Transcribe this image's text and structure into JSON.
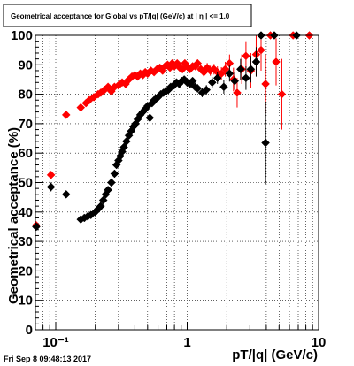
{
  "chart_data": {
    "type": "scatter",
    "title": "Geometrical acceptance for Global vs pT/|q| (GeV/c) at | η | <= 1.0",
    "xlabel": "pT/|q| (GeV/c)",
    "ylabel": "Geometrical acceptance (%)",
    "x_scale": "log",
    "xlim": [
      0.07,
      10
    ],
    "ylim": [
      0,
      100
    ],
    "x_ticks": [
      {
        "value": 0.1,
        "label": "10⁻¹"
      },
      {
        "value": 1,
        "label": "1"
      },
      {
        "value": 10,
        "label": "10"
      }
    ],
    "y_ticks": [
      {
        "value": 0,
        "label": "0"
      },
      {
        "value": 10,
        "label": "10"
      },
      {
        "value": 20,
        "label": "20"
      },
      {
        "value": 30,
        "label": "30"
      },
      {
        "value": 40,
        "label": "40"
      },
      {
        "value": 50,
        "label": "50"
      },
      {
        "value": 60,
        "label": "60"
      },
      {
        "value": 70,
        "label": "70"
      },
      {
        "value": 80,
        "label": "80"
      },
      {
        "value": 90,
        "label": "90"
      },
      {
        "value": 100,
        "label": "100"
      }
    ],
    "grid": true,
    "series": [
      {
        "color": "#ff0000",
        "marker": "diamond",
        "points": [
          [
            0.071,
            35.5
          ],
          [
            0.092,
            52.6
          ],
          [
            0.12,
            73.0
          ],
          [
            0.155,
            75.5
          ],
          [
            0.17,
            77.0
          ],
          [
            0.18,
            78.0
          ],
          [
            0.195,
            79.0
          ],
          [
            0.21,
            80.0
          ],
          [
            0.22,
            80.5
          ],
          [
            0.235,
            81.5
          ],
          [
            0.25,
            82.5
          ],
          [
            0.265,
            81.0
          ],
          [
            0.28,
            82.5
          ],
          [
            0.3,
            83.0
          ],
          [
            0.32,
            84.0
          ],
          [
            0.34,
            83.5
          ],
          [
            0.36,
            85.0
          ],
          [
            0.38,
            86.0
          ],
          [
            0.4,
            86.5
          ],
          [
            0.42,
            86.0
          ],
          [
            0.44,
            87.0
          ],
          [
            0.46,
            86.5
          ],
          [
            0.48,
            87.5
          ],
          [
            0.5,
            87.0
          ],
          [
            0.53,
            88.0
          ],
          [
            0.56,
            87.5
          ],
          [
            0.59,
            88.5
          ],
          [
            0.62,
            89.0
          ],
          [
            0.65,
            88.0
          ],
          [
            0.68,
            89.5
          ],
          [
            0.71,
            90.0
          ],
          [
            0.74,
            89.0
          ],
          [
            0.77,
            90.5
          ],
          [
            0.8,
            89.5
          ],
          [
            0.84,
            90.5
          ],
          [
            0.88,
            89.0
          ],
          [
            0.92,
            88.5
          ],
          [
            0.96,
            90.5
          ],
          [
            1.0,
            89.5
          ],
          [
            1.05,
            88.5
          ],
          [
            1.1,
            89.5
          ],
          [
            1.15,
            89.5
          ],
          [
            1.2,
            90.5
          ],
          [
            1.27,
            88.5
          ],
          [
            1.34,
            87.5
          ],
          [
            1.42,
            89.0
          ],
          [
            1.5,
            88.0
          ],
          [
            1.6,
            88.5
          ],
          [
            1.7,
            87.5
          ],
          [
            1.82,
            87.0
          ],
          [
            1.95,
            88.5
          ],
          [
            2.1,
            90.5
          ],
          [
            2.25,
            85.0
          ],
          [
            2.4,
            80.5
          ],
          [
            2.6,
            88.5
          ],
          [
            2.8,
            93.0
          ],
          [
            3.05,
            88.0
          ],
          [
            3.35,
            93.5
          ],
          [
            3.65,
            95.0
          ],
          [
            3.95,
            83.5
          ],
          [
            4.3,
            100.0
          ],
          [
            4.75,
            91.0
          ],
          [
            5.25,
            80.0
          ],
          [
            6.4,
            100.0
          ],
          [
            8.5,
            100.0
          ]
        ],
        "errors": [
          0.8,
          1.2,
          1.0,
          1.0,
          1.0,
          0.9,
          0.9,
          0.9,
          0.9,
          0.9,
          0.8,
          0.8,
          0.8,
          0.8,
          0.8,
          0.8,
          0.8,
          0.8,
          0.8,
          0.8,
          0.8,
          0.8,
          0.8,
          0.8,
          0.8,
          0.8,
          0.8,
          0.8,
          0.9,
          0.9,
          0.9,
          0.9,
          0.9,
          0.9,
          1.0,
          1.0,
          1.0,
          1.0,
          1.1,
          1.1,
          1.2,
          1.2,
          1.3,
          1.4,
          1.5,
          1.6,
          1.7,
          1.8,
          2.0,
          2.2,
          2.5,
          3.0,
          4.0,
          5.0,
          5.0,
          5.0,
          6.0,
          7.0,
          7.0,
          10.0,
          0.0,
          8.0,
          12.0,
          0.0,
          0.0
        ]
      },
      {
        "color": "#000000",
        "marker": "diamond",
        "points": [
          [
            0.071,
            35.0
          ],
          [
            0.092,
            48.5
          ],
          [
            0.12,
            46.0
          ],
          [
            0.155,
            37.5
          ],
          [
            0.165,
            38.0
          ],
          [
            0.175,
            38.5
          ],
          [
            0.185,
            39.0
          ],
          [
            0.2,
            40.0
          ],
          [
            0.21,
            41.0
          ],
          [
            0.22,
            42.0
          ],
          [
            0.23,
            44.0
          ],
          [
            0.24,
            46.0
          ],
          [
            0.25,
            47.5
          ],
          [
            0.265,
            50.0
          ],
          [
            0.28,
            53.0
          ],
          [
            0.29,
            56.0
          ],
          [
            0.3,
            57.5
          ],
          [
            0.31,
            59.0
          ],
          [
            0.32,
            60.5
          ],
          [
            0.33,
            62.0
          ],
          [
            0.345,
            64.0
          ],
          [
            0.36,
            66.0
          ],
          [
            0.375,
            67.5
          ],
          [
            0.39,
            69.0
          ],
          [
            0.405,
            70.0
          ],
          [
            0.42,
            71.5
          ],
          [
            0.44,
            73.0
          ],
          [
            0.46,
            74.0
          ],
          [
            0.48,
            75.0
          ],
          [
            0.5,
            76.0
          ],
          [
            0.52,
            72.0
          ],
          [
            0.54,
            77.0
          ],
          [
            0.56,
            78.0
          ],
          [
            0.58,
            78.5
          ],
          [
            0.6,
            79.0
          ],
          [
            0.63,
            80.0
          ],
          [
            0.66,
            80.5
          ],
          [
            0.69,
            81.0
          ],
          [
            0.72,
            81.5
          ],
          [
            0.75,
            82.5
          ],
          [
            0.79,
            83.0
          ],
          [
            0.83,
            84.0
          ],
          [
            0.87,
            83.5
          ],
          [
            0.91,
            84.5
          ],
          [
            0.95,
            85.0
          ],
          [
            1.0,
            84.0
          ],
          [
            1.05,
            83.5
          ],
          [
            1.1,
            84.5
          ],
          [
            1.15,
            82.5
          ],
          [
            1.2,
            82.0
          ],
          [
            1.3,
            80.5
          ],
          [
            1.4,
            81.5
          ],
          [
            1.55,
            84.0
          ],
          [
            1.7,
            85.5
          ],
          [
            1.9,
            82.5
          ],
          [
            2.1,
            87.0
          ],
          [
            2.3,
            84.5
          ],
          [
            2.55,
            88.5
          ],
          [
            2.8,
            85.5
          ],
          [
            3.05,
            88.5
          ],
          [
            3.35,
            91.0
          ],
          [
            3.65,
            100.0
          ],
          [
            3.95,
            63.5
          ],
          [
            4.6,
            100.0
          ],
          [
            6.8,
            100.0
          ]
        ],
        "errors": [
          1.0,
          1.5,
          1.0,
          1.0,
          1.0,
          1.0,
          1.0,
          1.0,
          1.0,
          1.0,
          1.0,
          1.0,
          1.0,
          1.0,
          1.0,
          1.0,
          1.0,
          1.0,
          1.0,
          1.0,
          1.0,
          1.0,
          1.0,
          1.0,
          1.0,
          1.0,
          1.0,
          1.0,
          1.0,
          1.0,
          1.0,
          1.0,
          1.0,
          1.0,
          1.0,
          1.0,
          1.0,
          1.0,
          1.0,
          1.0,
          1.0,
          1.0,
          1.0,
          1.0,
          1.1,
          1.1,
          1.2,
          1.2,
          1.3,
          1.4,
          1.5,
          1.6,
          1.8,
          2.0,
          2.3,
          2.7,
          3.0,
          3.5,
          4.0,
          4.5,
          5.0,
          0.0,
          14.0,
          0.0,
          0.0
        ]
      }
    ]
  },
  "footer": {
    "timestamp": "Fri Sep  8 09:48:13 2017"
  }
}
